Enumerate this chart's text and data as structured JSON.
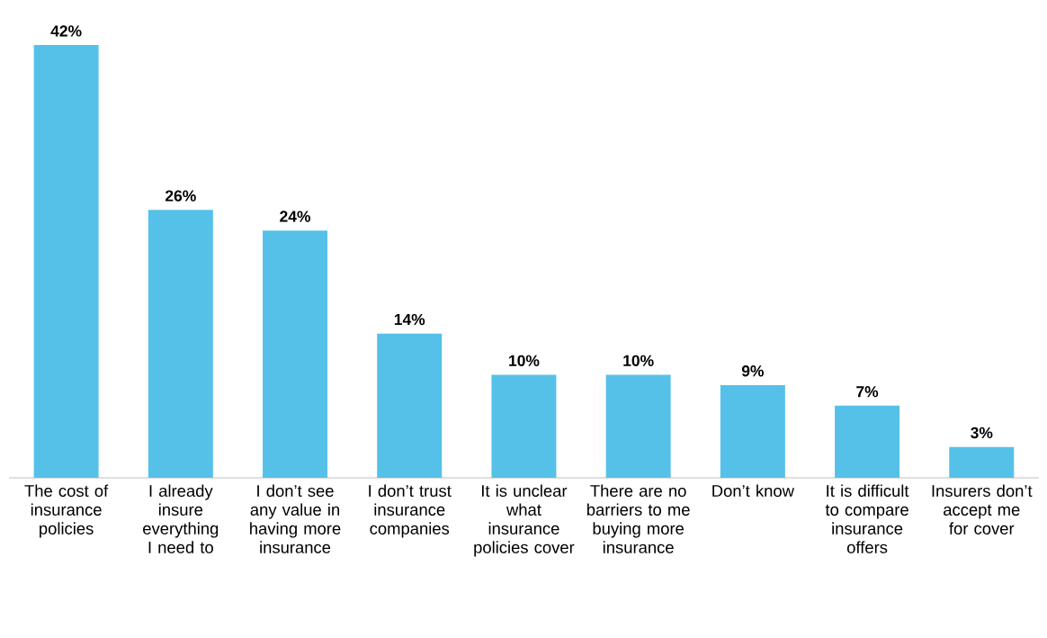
{
  "chart_data": {
    "type": "bar",
    "categories": [
      "The cost of insurance policies",
      "I already insure everything I need to",
      "I don’t see any value in having more insurance",
      "I don’t trust insurance companies",
      "It is unclear what insurance policies cover",
      "There are no barriers to me buying more insurance",
      "Don’t know",
      "It is difficult to compare insurance offers",
      "Insurers don’t accept me for cover"
    ],
    "values": [
      42,
      26,
      24,
      14,
      10,
      10,
      9,
      7,
      3
    ],
    "value_labels": [
      "42%",
      "26%",
      "24%",
      "14%",
      "10%",
      "10%",
      "9%",
      "7%",
      "3%"
    ],
    "color": "#56c1e8"
  }
}
